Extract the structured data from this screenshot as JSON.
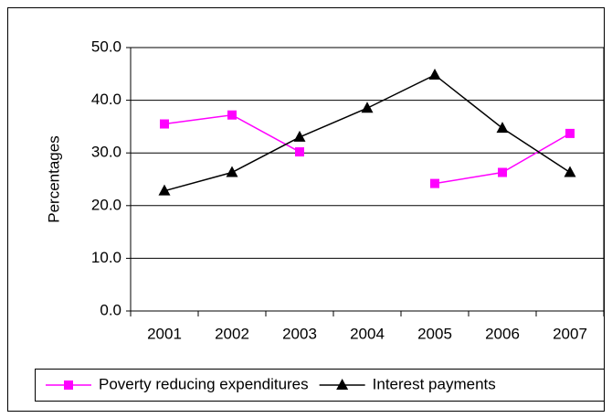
{
  "chart_data": {
    "type": "line",
    "y_label": "Percentages",
    "categories": [
      "2001",
      "2002",
      "2003",
      "2004",
      "2005",
      "2006",
      "2007"
    ],
    "series": [
      {
        "name": "Poverty reducing expenditures",
        "color": "#ff00ff",
        "marker": "square",
        "values": [
          35.5,
          37.2,
          30.2,
          null,
          24.2,
          26.3,
          33.7
        ]
      },
      {
        "name": "Interest payments",
        "color": "#000000",
        "marker": "triangle",
        "values": [
          22.8,
          26.3,
          33.0,
          38.5,
          44.8,
          34.7,
          26.3
        ]
      }
    ],
    "ylim": [
      0,
      50
    ],
    "yticks": [
      {
        "value": 0,
        "label": "0.0"
      },
      {
        "value": 10,
        "label": "10.0"
      },
      {
        "value": 20,
        "label": "20.0"
      },
      {
        "value": 30,
        "label": "30.0"
      },
      {
        "value": 40,
        "label": "40.0"
      },
      {
        "value": 50,
        "label": "50.0"
      }
    ],
    "grid": true,
    "legend": "bottom"
  }
}
